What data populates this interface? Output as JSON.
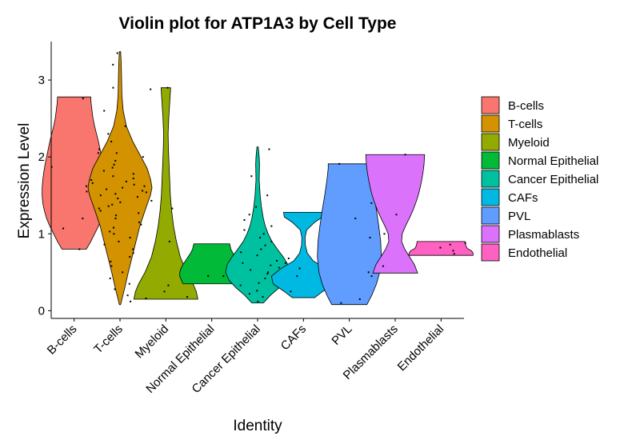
{
  "chart_data": {
    "type": "violin",
    "title": "Violin plot for ATP1A3 by Cell Type",
    "xlabel": "Identity",
    "ylabel": "Expression Level",
    "ylim": [
      -0.1,
      3.5
    ],
    "yticks": [
      "0",
      "1",
      "2",
      "3"
    ],
    "ytick_values": [
      0,
      1,
      2,
      3
    ],
    "legend_position": "right",
    "grid": false,
    "categories": [
      "B-cells",
      "T-cells",
      "Myeloid",
      "Normal Epithelial",
      "Cancer Epithelial",
      "CAFs",
      "PVL",
      "Plasmablasts",
      "Endothelial"
    ],
    "series": [
      {
        "name": "B-cells",
        "color": "#F8766D",
        "min": 0.8,
        "max": 2.78,
        "profile": [
          [
            0.8,
            0.38
          ],
          [
            0.9,
            0.52
          ],
          [
            1.0,
            0.64
          ],
          [
            1.1,
            0.76
          ],
          [
            1.2,
            0.86
          ],
          [
            1.3,
            0.93
          ],
          [
            1.4,
            0.98
          ],
          [
            1.5,
            1.0
          ],
          [
            1.6,
            1.0
          ],
          [
            1.7,
            0.98
          ],
          [
            1.8,
            0.95
          ],
          [
            1.9,
            0.91
          ],
          [
            2.0,
            0.86
          ],
          [
            2.1,
            0.81
          ],
          [
            2.2,
            0.76
          ],
          [
            2.3,
            0.7
          ],
          [
            2.4,
            0.64
          ],
          [
            2.5,
            0.59
          ],
          [
            2.6,
            0.56
          ],
          [
            2.7,
            0.53
          ],
          [
            2.78,
            0.52
          ]
        ],
        "points": [
          0.8,
          1.07,
          1.2,
          1.48,
          1.55,
          1.62,
          1.87,
          2.05,
          2.76
        ]
      },
      {
        "name": "T-cells",
        "color": "#D39200",
        "min": 0.08,
        "max": 3.37,
        "profile": [
          [
            0.08,
            0.02
          ],
          [
            0.3,
            0.15
          ],
          [
            0.5,
            0.26
          ],
          [
            0.7,
            0.38
          ],
          [
            0.9,
            0.5
          ],
          [
            1.1,
            0.62
          ],
          [
            1.3,
            0.78
          ],
          [
            1.5,
            0.95
          ],
          [
            1.6,
            1.0
          ],
          [
            1.7,
            0.96
          ],
          [
            1.85,
            0.85
          ],
          [
            2.0,
            0.66
          ],
          [
            2.2,
            0.4
          ],
          [
            2.4,
            0.2
          ],
          [
            2.6,
            0.1
          ],
          [
            2.8,
            0.06
          ],
          [
            3.0,
            0.05
          ],
          [
            3.2,
            0.04
          ],
          [
            3.37,
            0.02
          ]
        ],
        "points": [
          0.12,
          0.2,
          0.28,
          0.35,
          0.42,
          0.5,
          0.58,
          0.64,
          0.7,
          0.75,
          0.8,
          0.86,
          0.9,
          0.95,
          1.0,
          1.03,
          1.08,
          1.12,
          1.15,
          1.2,
          1.24,
          1.27,
          1.3,
          1.33,
          1.36,
          1.38,
          1.41,
          1.43,
          1.46,
          1.48,
          1.5,
          1.52,
          1.54,
          1.56,
          1.58,
          1.6,
          1.62,
          1.64,
          1.66,
          1.68,
          1.7,
          1.72,
          1.75,
          1.78,
          1.82,
          1.86,
          1.9,
          1.95,
          2.0,
          2.05,
          2.1,
          2.2,
          2.3,
          2.4,
          2.6,
          2.9,
          3.2,
          3.35
        ]
      },
      {
        "name": "Myeloid",
        "color": "#93AA00",
        "min": 0.15,
        "max": 2.9,
        "profile": [
          [
            0.15,
            1.0
          ],
          [
            0.25,
            0.95
          ],
          [
            0.35,
            0.85
          ],
          [
            0.5,
            0.65
          ],
          [
            0.7,
            0.45
          ],
          [
            0.9,
            0.33
          ],
          [
            1.1,
            0.24
          ],
          [
            1.3,
            0.18
          ],
          [
            1.5,
            0.14
          ],
          [
            1.7,
            0.12
          ],
          [
            1.9,
            0.1
          ],
          [
            2.1,
            0.08
          ],
          [
            2.3,
            0.07
          ],
          [
            2.5,
            0.09
          ],
          [
            2.7,
            0.12
          ],
          [
            2.9,
            0.15
          ]
        ],
        "points": [
          0.16,
          0.18,
          0.25,
          0.33,
          0.45,
          0.9,
          1.33,
          2.88,
          2.9
        ]
      },
      {
        "name": "Normal Epithelial",
        "color": "#00BA38",
        "min": 0.35,
        "max": 0.87,
        "profile": [
          [
            0.35,
            0.9
          ],
          [
            0.4,
            0.95
          ],
          [
            0.45,
            1.0
          ],
          [
            0.5,
            1.0
          ],
          [
            0.55,
            0.96
          ],
          [
            0.6,
            0.9
          ],
          [
            0.65,
            0.82
          ],
          [
            0.7,
            0.74
          ],
          [
            0.75,
            0.66
          ],
          [
            0.8,
            0.6
          ],
          [
            0.87,
            0.56
          ]
        ],
        "points": [
          0.45
        ]
      },
      {
        "name": "Cancer Epithelial",
        "color": "#00C19F",
        "min": 0.1,
        "max": 2.13,
        "profile": [
          [
            0.1,
            0.18
          ],
          [
            0.2,
            0.4
          ],
          [
            0.3,
            0.68
          ],
          [
            0.4,
            0.9
          ],
          [
            0.5,
            1.0
          ],
          [
            0.6,
            0.95
          ],
          [
            0.7,
            0.8
          ],
          [
            0.8,
            0.62
          ],
          [
            0.9,
            0.45
          ],
          [
            1.0,
            0.33
          ],
          [
            1.1,
            0.24
          ],
          [
            1.2,
            0.18
          ],
          [
            1.35,
            0.12
          ],
          [
            1.5,
            0.08
          ],
          [
            1.7,
            0.05
          ],
          [
            1.9,
            0.06
          ],
          [
            2.0,
            0.05
          ],
          [
            2.13,
            0.02
          ]
        ],
        "points": [
          0.12,
          0.18,
          0.22,
          0.26,
          0.3,
          0.33,
          0.36,
          0.39,
          0.42,
          0.45,
          0.48,
          0.5,
          0.53,
          0.56,
          0.59,
          0.62,
          0.65,
          0.68,
          0.72,
          0.76,
          0.8,
          0.85,
          0.9,
          0.95,
          1.0,
          1.05,
          1.1,
          1.18,
          1.25,
          1.35,
          1.5,
          1.75,
          2.1
        ]
      },
      {
        "name": "CAFs",
        "color": "#00B9E3",
        "min": 0.17,
        "max": 1.28,
        "profile": [
          [
            0.17,
            0.35
          ],
          [
            0.25,
            0.6
          ],
          [
            0.35,
            0.95
          ],
          [
            0.45,
            1.0
          ],
          [
            0.55,
            0.7
          ],
          [
            0.65,
            0.3
          ],
          [
            0.75,
            0.12
          ],
          [
            0.85,
            0.06
          ],
          [
            0.95,
            0.05
          ],
          [
            1.05,
            0.1
          ],
          [
            1.15,
            0.35
          ],
          [
            1.22,
            0.6
          ],
          [
            1.28,
            0.62
          ]
        ],
        "points": [
          0.25,
          0.4,
          0.45,
          0.55,
          0.62
        ]
      },
      {
        "name": "PVL",
        "color": "#619CFF",
        "min": 0.08,
        "max": 1.91,
        "profile": [
          [
            0.08,
            0.55
          ],
          [
            0.2,
            0.7
          ],
          [
            0.35,
            0.85
          ],
          [
            0.5,
            0.95
          ],
          [
            0.7,
            1.0
          ],
          [
            0.9,
            0.98
          ],
          [
            1.1,
            0.92
          ],
          [
            1.3,
            0.85
          ],
          [
            1.5,
            0.77
          ],
          [
            1.7,
            0.7
          ],
          [
            1.85,
            0.66
          ],
          [
            1.91,
            0.66
          ]
        ],
        "points": [
          0.1,
          0.15,
          0.45,
          0.95,
          1.0,
          1.2,
          1.4,
          1.91
        ]
      },
      {
        "name": "Plasmablasts",
        "color": "#DB72FB",
        "min": 0.49,
        "max": 2.03,
        "profile": [
          [
            0.49,
            0.7
          ],
          [
            0.6,
            0.6
          ],
          [
            0.7,
            0.45
          ],
          [
            0.8,
            0.3
          ],
          [
            0.9,
            0.2
          ],
          [
            1.0,
            0.22
          ],
          [
            1.1,
            0.32
          ],
          [
            1.2,
            0.44
          ],
          [
            1.3,
            0.55
          ],
          [
            1.4,
            0.64
          ],
          [
            1.5,
            0.72
          ],
          [
            1.6,
            0.78
          ],
          [
            1.7,
            0.83
          ],
          [
            1.8,
            0.87
          ],
          [
            1.9,
            0.9
          ],
          [
            2.03,
            0.92
          ]
        ],
        "points": [
          0.5,
          0.58,
          1.25,
          2.03
        ]
      },
      {
        "name": "Endothelial",
        "color": "#FF61C3",
        "min": 0.72,
        "max": 0.9,
        "profile": [
          [
            0.72,
            1.0
          ],
          [
            0.75,
            1.0
          ],
          [
            0.78,
            0.95
          ],
          [
            0.81,
            0.82
          ],
          [
            0.84,
            0.78
          ],
          [
            0.87,
            0.76
          ],
          [
            0.9,
            0.75
          ]
        ],
        "points": [
          0.74,
          0.78,
          0.82,
          0.86,
          0.88
        ]
      }
    ]
  }
}
